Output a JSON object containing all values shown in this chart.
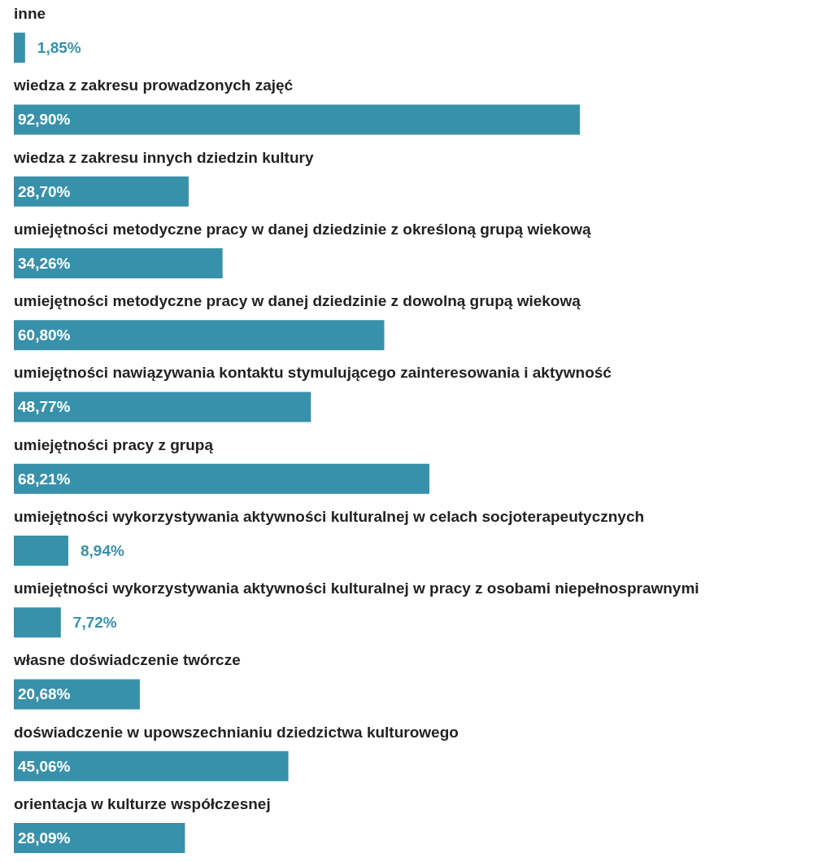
{
  "chart_data": {
    "type": "bar",
    "orientation": "horizontal",
    "color": "#3891ab",
    "categories": [
      "inne",
      "wiedza z zakresu prowadzonych zajęć",
      "wiedza z zakresu innych dziedzin kultury",
      "umiejętności metodyczne pracy w danej dziedzinie z określoną grupą wiekową",
      "umiejętności metodyczne pracy w danej dziedzinie z dowolną grupą wiekową",
      "umiejętności nawiązywania kontaktu stymulującego zainteresowania i aktywność",
      "umiejętności pracy z grupą",
      "umiejętności wykorzystywania aktywności kulturalnej w celach socjoterapeutycznych",
      "umiejętności wykorzystywania aktywności kulturalnej w pracy z osobami niepełnosprawnymi",
      "własne doświadczenie twórcze",
      "doświadczenie w upowszechnianiu dziedzictwa kulturowego",
      "orientacja w kulturze współczesnej"
    ],
    "values": [
      1.85,
      92.9,
      28.7,
      34.26,
      60.8,
      48.77,
      68.21,
      8.94,
      7.72,
      20.68,
      45.06,
      28.09
    ],
    "value_labels": [
      "1,85%",
      "92,90%",
      "28,70%",
      "34,26%",
      "60,80%",
      "48,77%",
      "68,21%",
      "8,94%",
      "7,72%",
      "20,68%",
      "45,06%",
      "28,09%"
    ]
  }
}
